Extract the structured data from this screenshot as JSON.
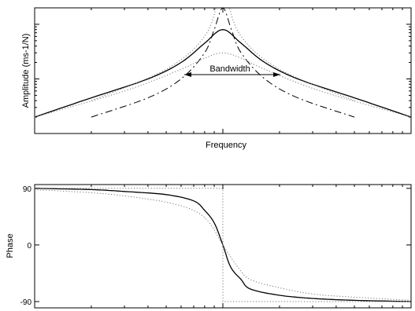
{
  "chart_data": [
    {
      "type": "line",
      "xlabel": "Frequency",
      "ylabel": "Amplitude (ms-1/N)",
      "xscale": "log",
      "yscale": "log",
      "grid": false,
      "x_ticks": [],
      "y_ticks": [],
      "annotation": {
        "text": "Bandwidth",
        "arrow": "double-headed, horizontal, across the half-power width of the solid-curve peak"
      },
      "series": [
        {
          "style": "solid",
          "color": "#000000",
          "points": [
            [
              0.1,
              0.2
            ],
            [
              0.2,
              0.45
            ],
            [
              0.4,
              1.0
            ],
            [
              0.6,
              2.0
            ],
            [
              0.8,
              4.5
            ],
            [
              1.0,
              8.0
            ],
            [
              1.25,
              4.5
            ],
            [
              1.67,
              2.0
            ],
            [
              2.5,
              1.0
            ],
            [
              5.0,
              0.45
            ],
            [
              10.0,
              0.2
            ]
          ]
        },
        {
          "style": "dash-dot",
          "color": "#000000",
          "points": [
            [
              0.2,
              0.2
            ],
            [
              0.4,
              0.45
            ],
            [
              0.6,
              1.0
            ],
            [
              0.8,
              3.0
            ],
            [
              0.9,
              8.0
            ],
            [
              1.0,
              20.0
            ],
            [
              1.11,
              8.0
            ],
            [
              1.25,
              3.0
            ],
            [
              1.67,
              1.0
            ],
            [
              2.5,
              0.45
            ],
            [
              5.0,
              0.2
            ]
          ]
        },
        {
          "style": "dotted",
          "color": "#777777",
          "points": [
            [
              0.1,
              0.2
            ],
            [
              0.3,
              0.6
            ],
            [
              0.6,
              1.5
            ],
            [
              0.8,
              2.4
            ],
            [
              1.0,
              3.0
            ],
            [
              1.25,
              2.4
            ],
            [
              1.67,
              1.5
            ],
            [
              3.3,
              0.6
            ],
            [
              10.0,
              0.2
            ]
          ]
        },
        {
          "style": "dotted",
          "color": "#777777",
          "points": [
            [
              0.2,
              0.4
            ],
            [
              0.5,
              1.5
            ],
            [
              0.8,
              6.0
            ],
            [
              0.95,
              30.0
            ],
            [
              1.0,
              60.0
            ],
            [
              1.05,
              30.0
            ],
            [
              1.25,
              6.0
            ],
            [
              2.0,
              1.5
            ],
            [
              5.0,
              0.4
            ]
          ]
        }
      ]
    },
    {
      "type": "line",
      "xlabel": "",
      "ylabel": "Phase",
      "xscale": "log",
      "ylim": [
        -90,
        90
      ],
      "y_ticks": [
        "90",
        "0",
        "-90"
      ],
      "grid": false,
      "series": [
        {
          "style": "solid",
          "color": "#000000",
          "points": [
            [
              0.1,
              90
            ],
            [
              0.2,
              88
            ],
            [
              0.3,
              85
            ],
            [
              0.5,
              80
            ],
            [
              0.7,
              70
            ],
            [
              0.8,
              55
            ],
            [
              0.9,
              35
            ],
            [
              1.0,
              0
            ],
            [
              1.1,
              -35
            ],
            [
              1.25,
              -55
            ],
            [
              1.4,
              -70
            ],
            [
              2.0,
              -80
            ],
            [
              3.0,
              -85
            ],
            [
              5.0,
              -88
            ],
            [
              10.0,
              -90
            ]
          ]
        },
        {
          "style": "dotted",
          "color": "#777777",
          "points": [
            [
              0.1,
              88
            ],
            [
              0.2,
              83
            ],
            [
              0.3,
              78
            ],
            [
              0.5,
              68
            ],
            [
              0.7,
              55
            ],
            [
              0.85,
              35
            ],
            [
              1.0,
              0
            ],
            [
              1.2,
              -35
            ],
            [
              1.4,
              -55
            ],
            [
              2.0,
              -68
            ],
            [
              3.0,
              -78
            ],
            [
              5.0,
              -83
            ],
            [
              10.0,
              -88
            ]
          ]
        },
        {
          "style": "dotted",
          "color": "#777777",
          "points": [
            [
              0.1,
              90
            ],
            [
              0.999,
              90
            ],
            [
              1.001,
              -90
            ],
            [
              10.0,
              -90
            ]
          ]
        }
      ]
    }
  ]
}
